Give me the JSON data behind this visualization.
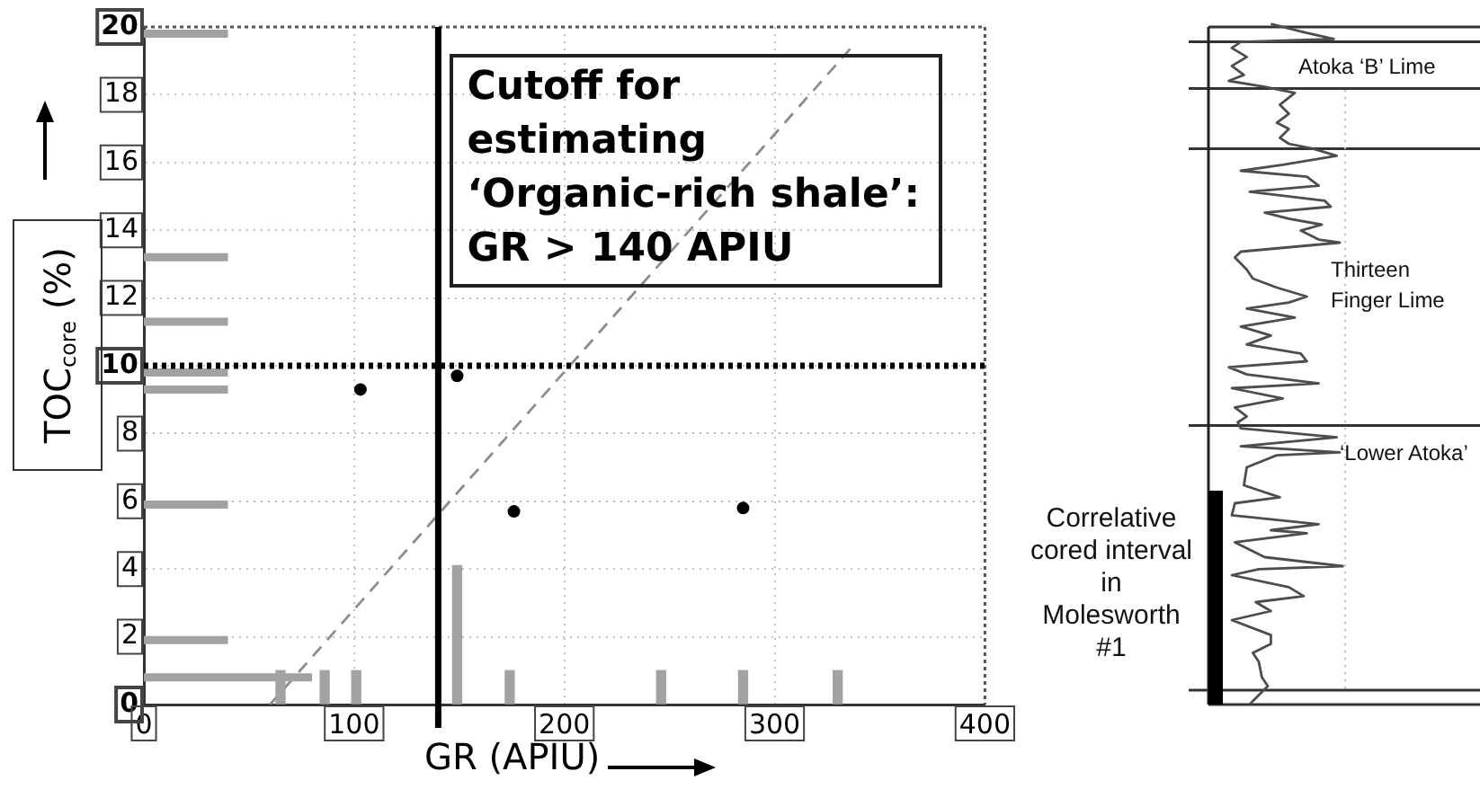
{
  "chart_data": [
    {
      "type": "bar",
      "xlabel": "GR (APIU)",
      "ylabel": "TOC$_{core}$ (%)",
      "xlim": [
        0,
        400
      ],
      "xticks": [
        0,
        100,
        200,
        300,
        400
      ],
      "ylim": [
        0,
        20
      ],
      "yticks": [
        0,
        2,
        4,
        6,
        8,
        10,
        12,
        14,
        16,
        18,
        20
      ],
      "grid": true,
      "series": [
        {
          "type": "line",
          "x": [
            0,
            80
          ],
          "values": [
            0.8,
            0.8
          ],
          "color": "#a2a2a2"
        },
        {
          "type": "line",
          "x": [
            0,
            40
          ],
          "values": [
            1.9,
            1.9
          ],
          "color": "#a2a2a2"
        },
        {
          "type": "line",
          "x": [
            0,
            40
          ],
          "values": [
            5.9,
            5.9
          ],
          "color": "#a2a2a2"
        },
        {
          "type": "line",
          "x": [
            0,
            40
          ],
          "values": [
            9.3,
            9.3
          ],
          "color": "#a2a2a2"
        },
        {
          "type": "line",
          "x": [
            0,
            40
          ],
          "values": [
            9.8,
            9.8
          ],
          "color": "#a2a2a2"
        },
        {
          "type": "line",
          "x": [
            0,
            40
          ],
          "values": [
            11.3,
            11.3
          ],
          "color": "#a2a2a2"
        },
        {
          "type": "line",
          "x": [
            0,
            40
          ],
          "values": [
            13.2,
            13.2
          ],
          "color": "#a2a2a2"
        },
        {
          "type": "line",
          "x": [
            0,
            40
          ],
          "values": [
            19.8,
            19.8
          ],
          "color": "#a2a2a2"
        },
        {
          "type": "bar",
          "x": [
            65,
            86,
            101,
            149,
            174,
            246,
            285,
            330
          ],
          "values": [
            1,
            1,
            1,
            4.1,
            1,
            1,
            1,
            1
          ],
          "color": "#a2a2a2"
        },
        {
          "type": "scatter",
          "x": [
            103,
            149,
            176,
            285
          ],
          "values": [
            9.3,
            9.7,
            5.7,
            5.8
          ],
          "color": "#000000",
          "marker": "circle"
        },
        {
          "type": "line",
          "x": [
            60,
            338
          ],
          "values": [
            0,
            19.5
          ],
          "color": "#8c8c8c",
          "line_style": "dashed"
        }
      ],
      "ref_lines": [
        {
          "axis": "x",
          "value": 140,
          "label": "Cutoff for\nestimating\n‘Organic-rich shale’:\nGR > 140 APIU",
          "color": "#000000"
        },
        {
          "axis": "y",
          "value": 10,
          "color": "#000000",
          "line_style": "dotted"
        }
      ]
    },
    {
      "type": "other",
      "annotations": [
        "Atoka ‘B’ Lime",
        "Thirteen\nFinger Lime",
        "‘Lower Atoka’",
        "Correlative\ncored interval\nin\nMolesworth\n#1"
      ]
    }
  ]
}
